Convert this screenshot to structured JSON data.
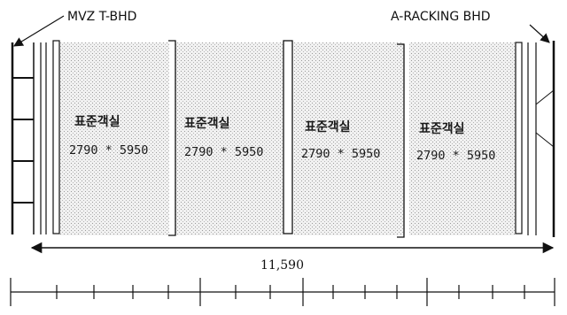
{
  "labels": {
    "left_bulkhead": "MVZ T-BHD",
    "right_bulkhead": "A-RACKING BHD"
  },
  "rooms": [
    {
      "name": "표준객실",
      "dims": "2790 * 5950"
    },
    {
      "name": "표준객실",
      "dims": "2790 * 5950"
    },
    {
      "name": "표준객실",
      "dims": "2790 * 5950"
    },
    {
      "name": "표준객실",
      "dims": "2790 * 5950"
    }
  ],
  "overall_dimension": "11,590",
  "colors": {
    "line": "#111111",
    "fill": "#ececec",
    "dot": "#a8a8a8"
  }
}
